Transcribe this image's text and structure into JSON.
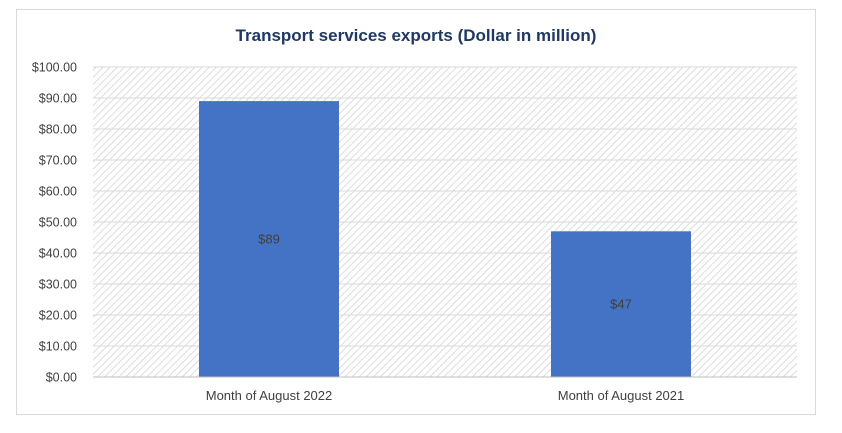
{
  "chart_data": {
    "type": "bar",
    "title": "Transport services exports (Dollar in million)",
    "xlabel": "",
    "ylabel": "",
    "categories": [
      "Month of August 2022",
      "Month of August 2021"
    ],
    "values": [
      89,
      47
    ],
    "data_labels": [
      "$89",
      "$47"
    ],
    "ylim": [
      0,
      100
    ],
    "y_ticks": [
      0,
      10,
      20,
      30,
      40,
      50,
      60,
      70,
      80,
      90,
      100
    ],
    "y_tick_labels": [
      "$0.00",
      "$10.00",
      "$20.00",
      "$30.00",
      "$40.00",
      "$50.00",
      "$60.00",
      "$70.00",
      "$80.00",
      "$90.00",
      "$100.00"
    ],
    "grid": true,
    "legend": "none",
    "bar_color": "#4472c4",
    "plot_pattern": "diagonal-hatch"
  }
}
